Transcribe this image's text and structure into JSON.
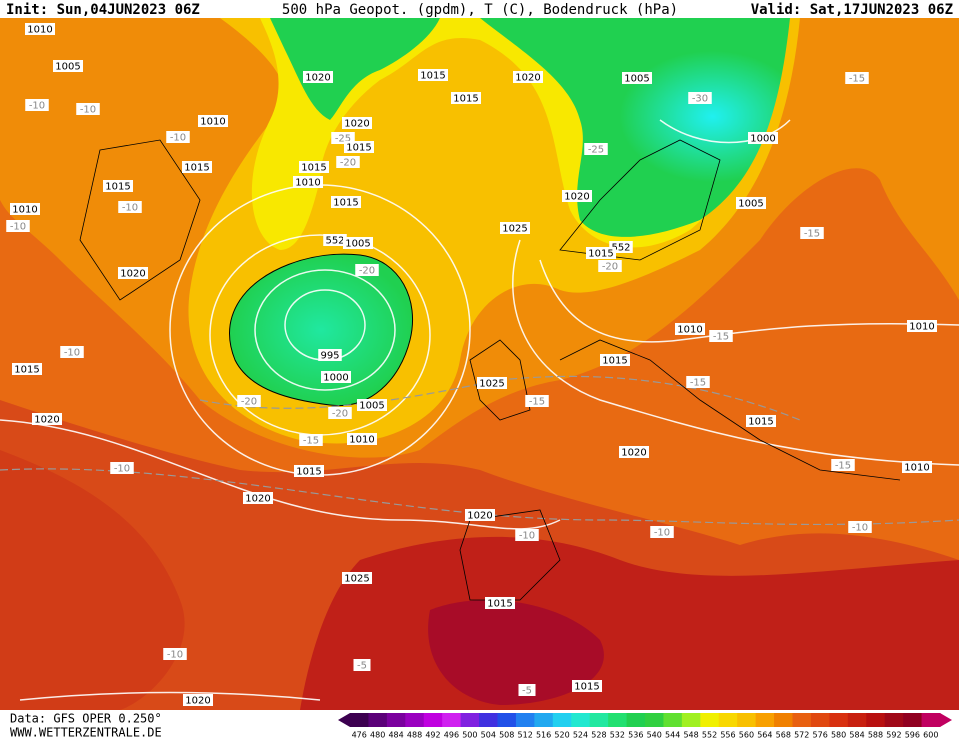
{
  "header": {
    "init": "Init: Sun,04JUN2023 06Z",
    "title": "500 hPa Geopot. (gpdm), T (C), Bodendruck (hPa)",
    "valid": "Valid: Sat,17JUN2023 06Z"
  },
  "footer": {
    "data": "Data: GFS OPER 0.250°",
    "site": "WWW.WETTERZENTRALE.DE"
  },
  "map": {
    "labels": [
      "1010",
      "1005",
      "-10",
      "-10",
      "1010",
      "-10",
      "1015",
      "1015",
      "-10",
      "1010",
      "-10",
      "1020",
      "-10",
      "1015",
      "1020",
      "-20",
      "-15",
      "-10",
      "1015",
      "1020",
      "1020",
      "1015",
      "1015",
      "1020",
      "-25",
      "1015",
      "-20",
      "1015",
      "1010",
      "1015",
      "552",
      "1005",
      "-20",
      "995",
      "1000",
      "-20",
      "1005",
      "1010",
      "1020",
      "1005",
      "-30",
      "1000",
      "-25",
      "1020",
      "1005",
      "1025",
      "552",
      "1015",
      "-20",
      "-15",
      "-15",
      "1010",
      "-15",
      "1015",
      "1025",
      "-15",
      "-15",
      "1015",
      "1020",
      "-15",
      "1010",
      "1010",
      "1020",
      "-10",
      "-10",
      "-10",
      "1025",
      "1015",
      "-10",
      "-5",
      "-5",
      "1015",
      "1020"
    ]
  },
  "colorbar": {
    "labels": [
      476,
      480,
      484,
      488,
      492,
      496,
      500,
      504,
      508,
      512,
      516,
      520,
      524,
      528,
      532,
      536,
      540,
      544,
      548,
      552,
      556,
      560,
      564,
      568,
      572,
      576,
      580,
      584,
      588,
      592,
      596,
      600
    ],
    "colors": [
      "#3c0050",
      "#5a0078",
      "#7a009e",
      "#9a00c0",
      "#c000e0",
      "#d020f0",
      "#8020e0",
      "#4030e0",
      "#2050e8",
      "#2080f0",
      "#20a8f0",
      "#20d0f0",
      "#20e8d0",
      "#20e8a0",
      "#20e070",
      "#20d050",
      "#30d040",
      "#60e030",
      "#a0f020",
      "#f0f000",
      "#f8d800",
      "#f8c000",
      "#f8a000",
      "#f08000",
      "#e86010",
      "#e04810",
      "#d83010",
      "#c82010",
      "#b81010",
      "#a00818",
      "#900020",
      "#c00060"
    ]
  }
}
